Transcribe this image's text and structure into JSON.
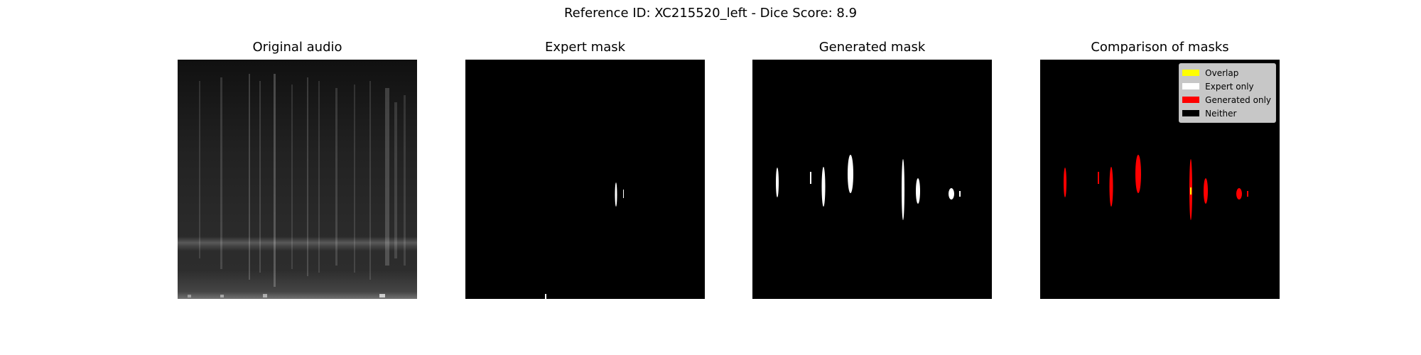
{
  "figure": {
    "suptitle": "Reference ID: XC215520_left - Dice Score: 8.9"
  },
  "panels": [
    {
      "title": "Original audio"
    },
    {
      "title": "Expert mask"
    },
    {
      "title": "Generated mask"
    },
    {
      "title": "Comparison of masks"
    }
  ],
  "legend": [
    {
      "label": "Overlap",
      "color": "#ffff00"
    },
    {
      "label": "Expert only",
      "color": "#ffffff"
    },
    {
      "label": "Generated only",
      "color": "#ff0000"
    },
    {
      "label": "Neither",
      "color": "#000000"
    }
  ]
}
